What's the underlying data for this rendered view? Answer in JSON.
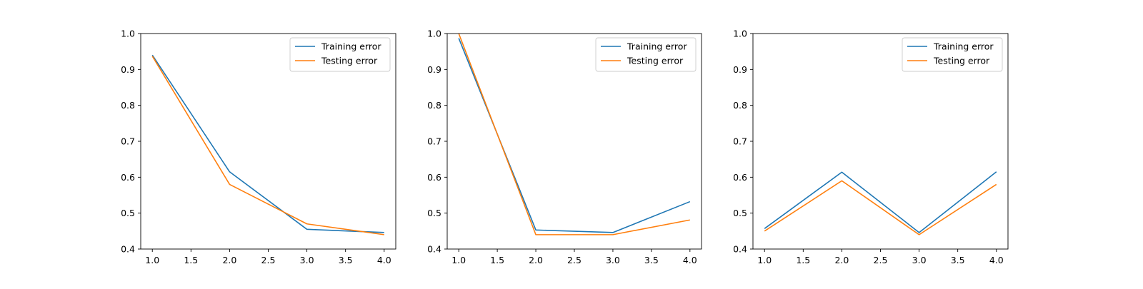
{
  "colors": {
    "training": "#1f77b4",
    "testing": "#ff7f0e"
  },
  "chart_data": [
    {
      "type": "line",
      "title": "",
      "xlabel": "",
      "ylabel": "",
      "xlim": [
        0.85,
        4.15
      ],
      "ylim": [
        0.4,
        1.0
      ],
      "x_ticks": [
        "1.0",
        "1.5",
        "2.0",
        "2.5",
        "3.0",
        "3.5",
        "4.0"
      ],
      "y_ticks": [
        "0.4",
        "0.5",
        "0.6",
        "0.7",
        "0.8",
        "0.9",
        "1.0"
      ],
      "grid": false,
      "legend_position": "top-right",
      "x": [
        1,
        2,
        3,
        4
      ],
      "series": [
        {
          "name": "Training error",
          "color": "#1f77b4",
          "values": [
            0.94,
            0.615,
            0.455,
            0.446
          ]
        },
        {
          "name": "Testing error",
          "color": "#ff7f0e",
          "values": [
            0.937,
            0.58,
            0.47,
            0.44
          ]
        }
      ]
    },
    {
      "type": "line",
      "title": "",
      "xlabel": "",
      "ylabel": "",
      "xlim": [
        0.85,
        4.15
      ],
      "ylim": [
        0.4,
        1.0
      ],
      "x_ticks": [
        "1.0",
        "1.5",
        "2.0",
        "2.5",
        "3.0",
        "3.5",
        "4.0"
      ],
      "y_ticks": [
        "0.4",
        "0.5",
        "0.6",
        "0.7",
        "0.8",
        "0.9",
        "1.0"
      ],
      "grid": false,
      "legend_position": "top-right",
      "x": [
        1,
        2,
        3,
        4
      ],
      "series": [
        {
          "name": "Training error",
          "color": "#1f77b4",
          "values": [
            0.987,
            0.453,
            0.446,
            0.532
          ]
        },
        {
          "name": "Testing error",
          "color": "#ff7f0e",
          "values": [
            1.0,
            0.44,
            0.44,
            0.481
          ]
        }
      ]
    },
    {
      "type": "line",
      "title": "",
      "xlabel": "",
      "ylabel": "",
      "xlim": [
        0.85,
        4.15
      ],
      "ylim": [
        0.4,
        1.0
      ],
      "x_ticks": [
        "1.0",
        "1.5",
        "2.0",
        "2.5",
        "3.0",
        "3.5",
        "4.0"
      ],
      "y_ticks": [
        "0.4",
        "0.5",
        "0.6",
        "0.7",
        "0.8",
        "0.9",
        "1.0"
      ],
      "grid": false,
      "legend_position": "top-right",
      "x": [
        1,
        2,
        3,
        4
      ],
      "series": [
        {
          "name": "Training error",
          "color": "#1f77b4",
          "values": [
            0.457,
            0.614,
            0.446,
            0.615
          ]
        },
        {
          "name": "Testing error",
          "color": "#ff7f0e",
          "values": [
            0.45,
            0.59,
            0.44,
            0.58
          ]
        }
      ]
    }
  ]
}
